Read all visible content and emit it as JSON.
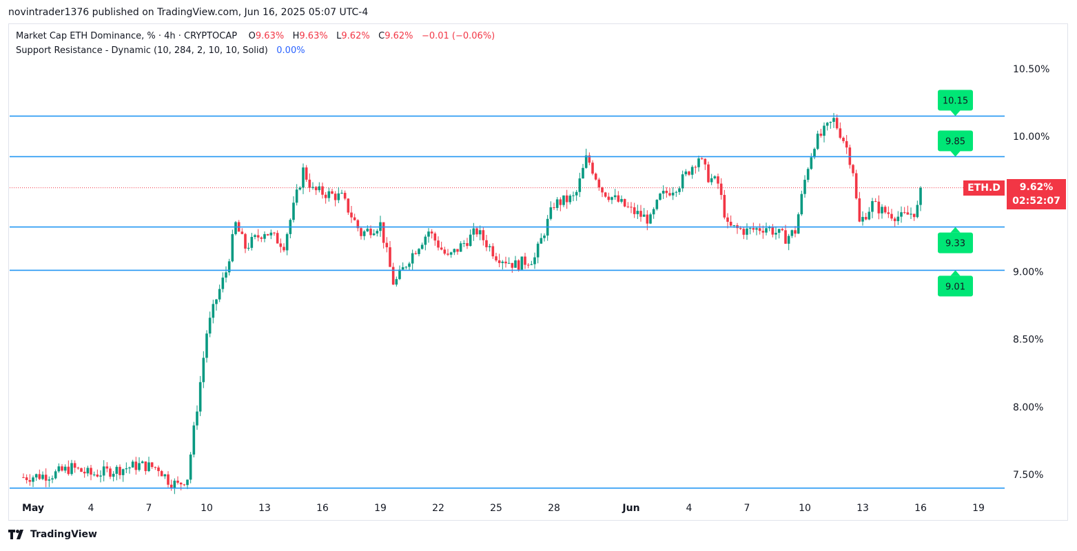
{
  "header": {
    "published": "novintrader1376 published on TradingView.com, Jun 16, 2025 05:07 UTC-4"
  },
  "legend": {
    "symbol_desc": "Market Cap ETH Dominance, % · 4h · CRYPTOCAP",
    "o_label": "O",
    "o_value": "9.63%",
    "h_label": "H",
    "h_value": "9.63%",
    "l_label": "L",
    "l_value": "9.62%",
    "c_label": "C",
    "c_value": "9.62%",
    "change": "−0.01 (−0.06%)",
    "indicator": "Support Resistance - Dynamic (10, 284, 2, 10, 10, Solid)",
    "indicator_value": "0.00%"
  },
  "price_tag": {
    "symbol": "ETH.D",
    "price": "9.62%",
    "countdown": "02:52:07"
  },
  "footer": {
    "brand": "TradingView"
  },
  "colors": {
    "up": "#089981",
    "down": "#f23645",
    "level_line": "#2196f3",
    "level_label_bg": "#00e676",
    "grid_text": "#131722"
  },
  "chart_data": {
    "type": "candlestick",
    "symbol": "ETH.D",
    "timeframe": "4h",
    "ylim": [
      7.38,
      10.72
    ],
    "y_ticks": [
      "10.50%",
      "10.00%",
      "9.00%",
      "8.50%",
      "8.00%",
      "7.50%"
    ],
    "y_tick_values": [
      10.5,
      10.0,
      9.0,
      8.5,
      8.0,
      7.5
    ],
    "x_ticks": [
      "May",
      "4",
      "7",
      "10",
      "13",
      "16",
      "19",
      "22",
      "25",
      "28",
      "Jun",
      "4",
      "7",
      "10",
      "13",
      "16",
      "19"
    ],
    "x_tick_days": [
      1,
      4,
      7,
      10,
      13,
      16,
      19,
      22,
      25,
      28,
      32,
      35,
      38,
      41,
      44,
      47,
      50
    ],
    "last_price": 9.62,
    "levels": [
      {
        "value": 10.15,
        "label": "10.15",
        "marker": "above"
      },
      {
        "value": 9.85,
        "label": "9.85",
        "marker": "above"
      },
      {
        "value": 9.33,
        "label": "9.33",
        "marker": "below"
      },
      {
        "value": 9.01,
        "label": "9.01",
        "marker": "below"
      },
      {
        "value": 7.4,
        "label": "",
        "marker": "below"
      }
    ],
    "anchors_day_close": [
      [
        0.0,
        7.48
      ],
      [
        1.5,
        7.5
      ],
      [
        2.5,
        7.55
      ],
      [
        3.5,
        7.5
      ],
      [
        5.0,
        7.54
      ],
      [
        6.0,
        7.57
      ],
      [
        7.0,
        7.55
      ],
      [
        7.5,
        7.46
      ],
      [
        8.0,
        7.42
      ],
      [
        8.5,
        7.48
      ],
      [
        9.0,
        8.0
      ],
      [
        9.5,
        8.55
      ],
      [
        10.0,
        8.8
      ],
      [
        10.5,
        9.0
      ],
      [
        11.0,
        9.35
      ],
      [
        11.5,
        9.18
      ],
      [
        12.5,
        9.3
      ],
      [
        13.5,
        9.2
      ],
      [
        14.5,
        9.75
      ],
      [
        15.0,
        9.6
      ],
      [
        16.5,
        9.55
      ],
      [
        17.5,
        9.28
      ],
      [
        18.5,
        9.35
      ],
      [
        19.2,
        8.9
      ],
      [
        20.0,
        9.1
      ],
      [
        21.0,
        9.3
      ],
      [
        22.0,
        9.1
      ],
      [
        23.5,
        9.3
      ],
      [
        24.5,
        9.12
      ],
      [
        25.5,
        9.05
      ],
      [
        26.5,
        9.1
      ],
      [
        27.5,
        9.5
      ],
      [
        28.6,
        9.55
      ],
      [
        29.2,
        9.85
      ],
      [
        30.0,
        9.6
      ],
      [
        31.5,
        9.45
      ],
      [
        32.5,
        9.38
      ],
      [
        33.0,
        9.55
      ],
      [
        34.0,
        9.65
      ],
      [
        35.0,
        9.85
      ],
      [
        35.5,
        9.7
      ],
      [
        36.0,
        9.65
      ],
      [
        36.5,
        9.33
      ],
      [
        37.5,
        9.3
      ],
      [
        38.5,
        9.33
      ],
      [
        39.5,
        9.25
      ],
      [
        40.0,
        9.3
      ],
      [
        40.6,
        9.75
      ],
      [
        41.0,
        9.95
      ],
      [
        42.0,
        10.12
      ],
      [
        42.6,
        9.95
      ],
      [
        43.0,
        9.75
      ],
      [
        43.3,
        9.35
      ],
      [
        44.0,
        9.5
      ],
      [
        44.5,
        9.45
      ],
      [
        45.5,
        9.4
      ],
      [
        46.3,
        9.45
      ],
      [
        46.6,
        9.62
      ]
    ]
  }
}
